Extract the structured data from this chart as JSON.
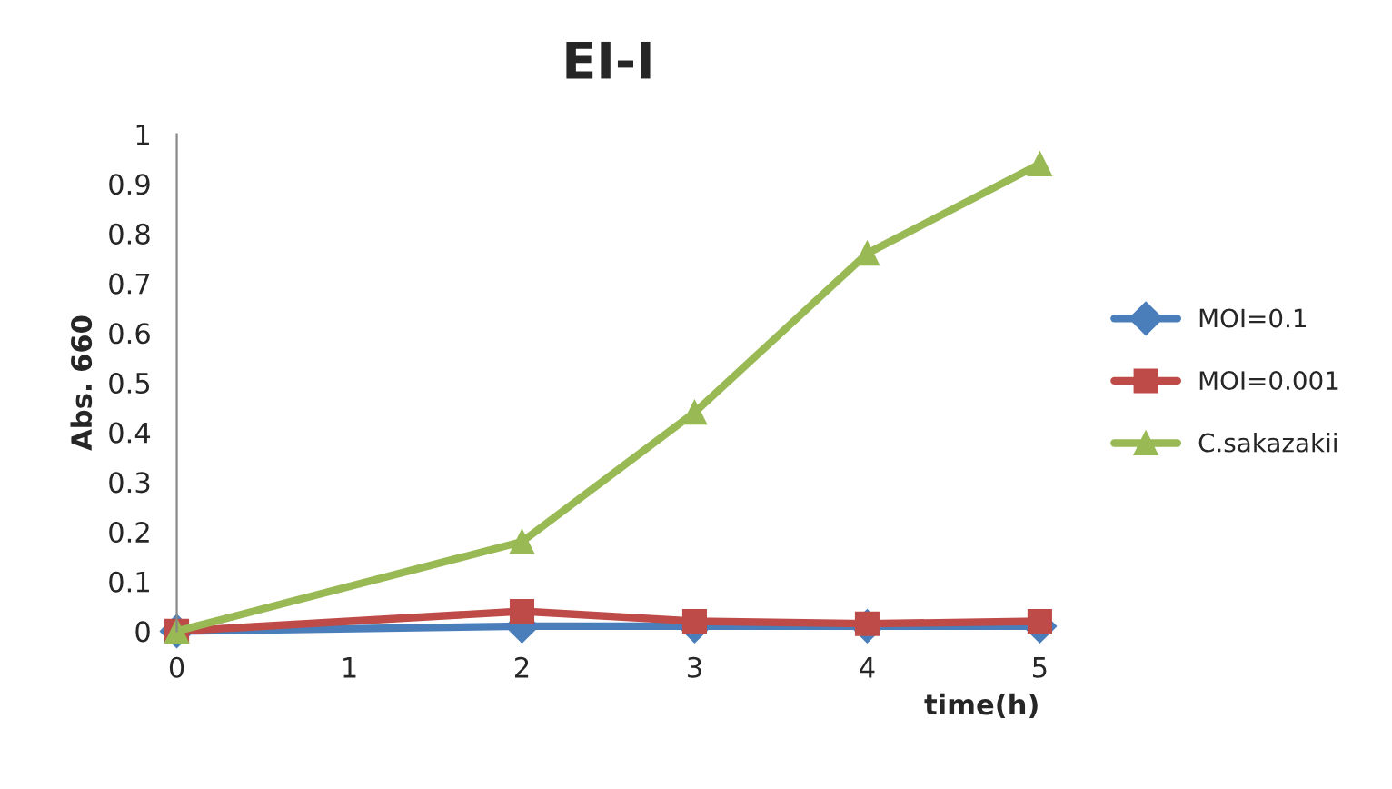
{
  "chart_data": {
    "type": "line",
    "title": "EI-I",
    "xlabel": "time(h)",
    "ylabel": "Abs. 660",
    "x": [
      0,
      2,
      3,
      4,
      5
    ],
    "series": [
      {
        "name": "MOI=0.1",
        "color": "#4a7ebb",
        "marker": "diamond",
        "values": [
          0.0,
          0.01,
          0.01,
          0.01,
          0.01
        ]
      },
      {
        "name": "MOI=0.001",
        "color": "#be4b48",
        "marker": "square",
        "values": [
          0.0,
          0.04,
          0.02,
          0.015,
          0.02
        ]
      },
      {
        "name": "C.sakazakii",
        "color": "#98b954",
        "marker": "triangle",
        "values": [
          0.0,
          0.18,
          0.44,
          0.76,
          0.94
        ]
      }
    ],
    "xlim": [
      0,
      5
    ],
    "xticks": [
      0,
      1,
      2,
      3,
      4,
      5
    ],
    "ylim": [
      0,
      1
    ],
    "yticks": [
      0,
      0.1,
      0.2,
      0.3,
      0.4,
      0.5,
      0.6,
      0.7,
      0.8,
      0.9,
      1
    ],
    "grid": false,
    "legend": "right"
  }
}
